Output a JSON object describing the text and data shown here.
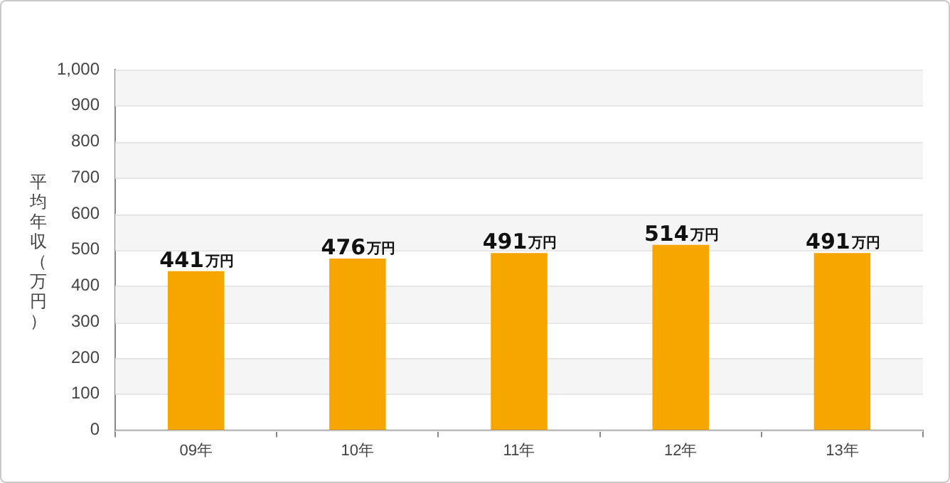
{
  "chart_data": {
    "type": "bar",
    "ylabel": "平均年収（万円）",
    "categories": [
      "09年",
      "10年",
      "11年",
      "12年",
      "13年"
    ],
    "values": [
      441,
      476,
      491,
      514,
      491
    ],
    "value_labels": [
      "441万円",
      "476万円",
      "491万円",
      "514万円",
      "491万円"
    ],
    "color": "#f7a600",
    "ylim": [
      0,
      1000
    ],
    "yticks": [
      0,
      100,
      200,
      300,
      400,
      500,
      600,
      700,
      800,
      900,
      {
        "value": 1000,
        "label": "1,000"
      }
    ],
    "grid": "y"
  }
}
